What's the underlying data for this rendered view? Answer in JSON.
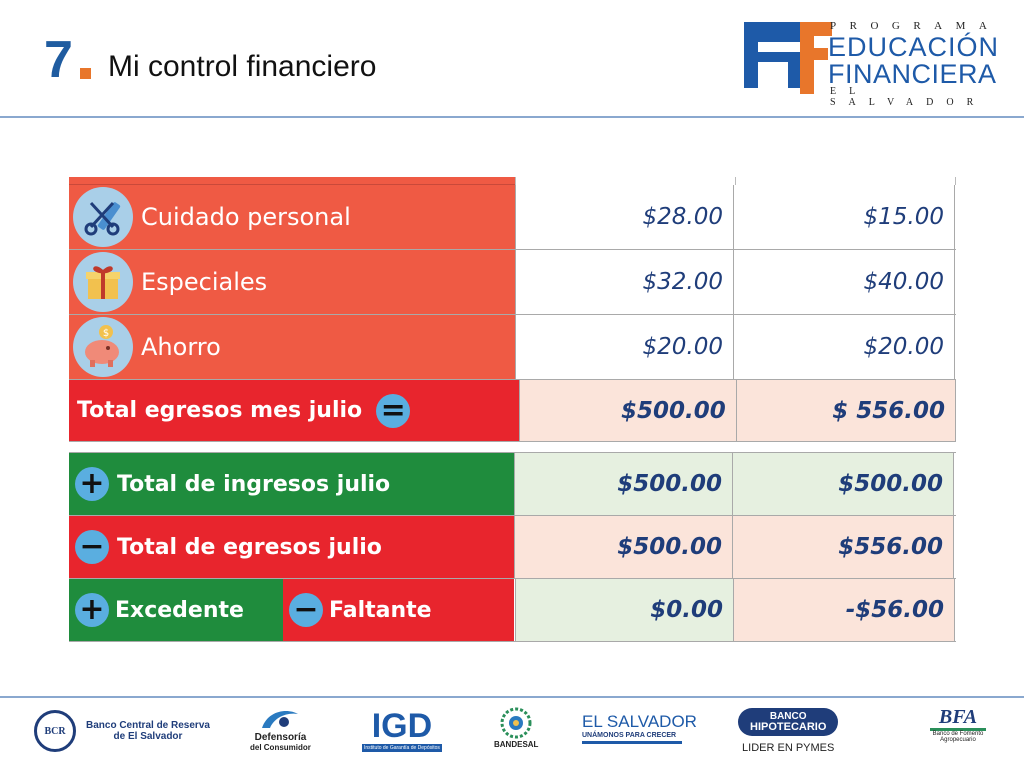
{
  "header": {
    "slide_number": "7",
    "title": "Mi control financiero"
  },
  "logo": {
    "top_line": "PROGRAMA",
    "line1": "EDUCACIÓN",
    "line2": "FINANCIERA",
    "bottom_line": "EL SALVADOR"
  },
  "expenses": [
    {
      "label": "Cuidado personal",
      "icon": "scissors-comb-icon",
      "col1": "$28.00",
      "col2": "$15.00"
    },
    {
      "label": "Especiales",
      "icon": "gift-icon",
      "col1": "$32.00",
      "col2": "$40.00"
    },
    {
      "label": "Ahorro",
      "icon": "piggy-bank-icon",
      "col1": "$20.00",
      "col2": "$20.00"
    }
  ],
  "total_expenses": {
    "label": "Total egresos mes julio",
    "col1": "$500.00",
    "col2": "$ 556.00"
  },
  "summary": {
    "income": {
      "label": "Total de ingresos julio",
      "col1": "$500.00",
      "col2": "$500.00"
    },
    "expenses": {
      "label": "Total de egresos julio",
      "col1": "$500.00",
      "col2": "$556.00"
    },
    "surplus_label": "Excedente",
    "shortfall_label": "Faltante",
    "col1": "$0.00",
    "col2": "-$56.00"
  },
  "footer": {
    "bcr": {
      "seal": "BCR",
      "name_line1": "Banco Central de Reserva",
      "name_line2": "de El Salvador"
    },
    "defensoria": {
      "line1": "Defensoría",
      "line2": "del Consumidor"
    },
    "igd": {
      "name": "IGD",
      "sub": "Instituto de Garantía de Depósitos"
    },
    "bandesal": {
      "name": "BANDESAL"
    },
    "elsalvador": {
      "name": "EL SALVADOR",
      "slogan": "UNÁMONOS PARA CRECER"
    },
    "bh": {
      "name_line1": "BANCO",
      "name_line2": "HIPOTECARIO",
      "slogan": "LIDER EN PYMES"
    },
    "bfa": {
      "name": "BFA",
      "sub_line1": "Banco de Fomento",
      "sub_line2": "Agropecuario"
    }
  },
  "colors": {
    "accent_blue": "#1f5ca0",
    "expense_red": "#ef5a44",
    "total_red": "#e8252d",
    "income_green": "#1f8c3d"
  }
}
